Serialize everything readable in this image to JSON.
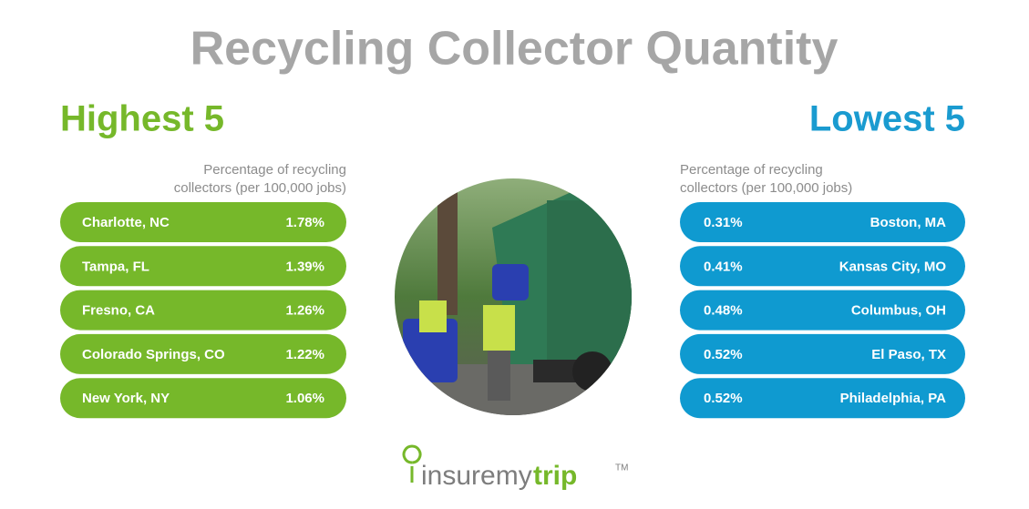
{
  "title": "Recycling Collector Quantity",
  "highest": {
    "heading": "Highest 5",
    "caption": [
      "Percentage of recycling",
      "collectors (per 100,000 jobs)"
    ],
    "rows": [
      {
        "city": "Charlotte, NC",
        "value": "1.78%"
      },
      {
        "city": "Tampa, FL",
        "value": "1.39%"
      },
      {
        "city": "Fresno, CA",
        "value": "1.26%"
      },
      {
        "city": "Colorado Springs, CO",
        "value": "1.22%"
      },
      {
        "city": "New York, NY",
        "value": "1.06%"
      }
    ]
  },
  "lowest": {
    "heading": "Lowest 5",
    "caption": [
      "Percentage of recycling",
      "collectors (per 100,000 jobs)"
    ],
    "rows": [
      {
        "city": "Boston, MA",
        "value": "0.31%"
      },
      {
        "city": "Kansas City, MO",
        "value": "0.41%"
      },
      {
        "city": "Columbus, OH",
        "value": "0.48%"
      },
      {
        "city": "El Paso, TX",
        "value": "0.52%"
      },
      {
        "city": "Philadelphia, PA",
        "value": "0.52%"
      }
    ]
  },
  "logo": {
    "main": "insuremy",
    "accent": "trip",
    "mark": "TM"
  }
}
